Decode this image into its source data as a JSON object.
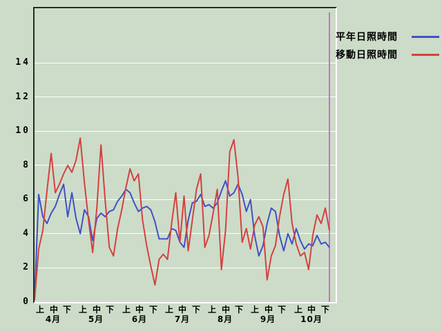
{
  "page": {
    "background_color": "#ccdcc8",
    "plot_border_dark": "#1f2f1f",
    "plot_border_light": "#ffffff",
    "grid_color": "#ffffff"
  },
  "legend": {
    "items": [
      {
        "label": "平年日照時間",
        "color": "#4150c6"
      },
      {
        "label": "移動日照時間",
        "color": "#d54040"
      }
    ]
  },
  "chart_data": {
    "type": "line",
    "title": "",
    "xlabel": "",
    "ylabel": "",
    "grid": "horizontal-white",
    "legend_position": "top-right-outside",
    "x_axis": {
      "months": [
        "4月",
        "5月",
        "6月",
        "7月",
        "8月",
        "9月",
        "10月"
      ],
      "period_labels": [
        "上",
        "中",
        "下"
      ]
    },
    "y_axis": {
      "ticks": [
        0,
        2,
        4,
        6,
        8,
        10,
        12,
        14
      ],
      "min": 0,
      "max": 17.2
    },
    "series": [
      {
        "name": "平年日照時間",
        "color": "#4150c6",
        "values": [
          0.1,
          6.3,
          5.0,
          4.6,
          5.2,
          5.6,
          6.3,
          6.9,
          5.0,
          6.4,
          4.9,
          4.0,
          5.4,
          5.0,
          3.6,
          4.9,
          5.2,
          5.0,
          5.3,
          5.4,
          5.9,
          6.2,
          6.6,
          6.4,
          5.8,
          5.3,
          5.5,
          5.6,
          5.4,
          4.7,
          3.7,
          3.7,
          3.7,
          4.3,
          4.2,
          3.5,
          3.2,
          4.8,
          5.8,
          5.9,
          6.3,
          5.6,
          5.7,
          5.5,
          5.8,
          6.5,
          7.1,
          6.2,
          6.4,
          6.9,
          6.3,
          5.3,
          6.0,
          3.9,
          2.7,
          3.3,
          4.6,
          5.5,
          5.3,
          3.9,
          3.0,
          4.0,
          3.4,
          4.3,
          3.6,
          3.1,
          3.4,
          3.3,
          3.9,
          3.4,
          3.5,
          3.2
        ]
      },
      {
        "name": "移動日照時間",
        "color": "#d54040",
        "values": [
          0.1,
          3.1,
          4.2,
          6.5,
          8.7,
          6.4,
          6.9,
          7.5,
          8.0,
          7.6,
          8.3,
          9.6,
          7.0,
          4.8,
          2.9,
          5.5,
          9.2,
          6.0,
          3.2,
          2.7,
          4.3,
          5.4,
          6.7,
          7.8,
          7.1,
          7.5,
          4.8,
          3.3,
          2.1,
          1.0,
          2.5,
          2.8,
          2.5,
          4.6,
          6.4,
          3.5,
          6.2,
          3.0,
          4.8,
          6.6,
          7.5,
          3.2,
          3.9,
          5.2,
          6.6,
          1.9,
          4.2,
          8.8,
          9.5,
          7.3,
          3.5,
          4.3,
          3.1,
          4.5,
          5.0,
          4.4,
          1.3,
          2.7,
          3.3,
          5.0,
          6.3,
          7.2,
          4.6,
          3.4,
          2.7,
          2.9,
          1.9,
          3.9,
          5.1,
          4.6,
          5.5,
          4.2
        ]
      }
    ],
    "marker_line": {
      "name": "current-position-marker",
      "color": "#cf6bcf",
      "at_last_point": true
    }
  }
}
